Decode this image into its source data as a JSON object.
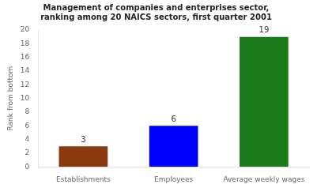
{
  "chart_data": {
    "type": "bar",
    "title": "Management of companies and enterprises sector,\nranking among 20 NAICS sectors, first quarter 2001",
    "categories": [
      "Establishments",
      "Employees",
      "Average weekly wages"
    ],
    "values": [
      3,
      6,
      19
    ],
    "colors": [
      "#8B3A0F",
      "#0000FF",
      "#1A7A1A"
    ],
    "ylabel": "Rank from bottom",
    "ylim": [
      0,
      20
    ],
    "yticks": [
      0,
      2,
      4,
      6,
      8,
      10,
      12,
      14,
      16,
      18,
      20
    ],
    "grid": false,
    "data_labels": true
  }
}
